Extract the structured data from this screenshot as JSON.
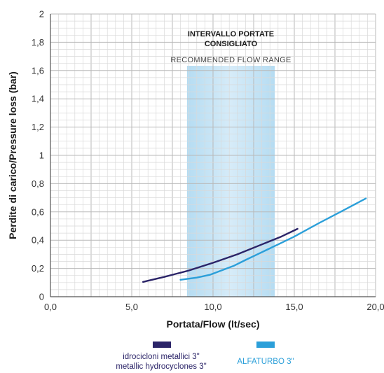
{
  "chart_data": {
    "type": "line",
    "xlabel": "Portata/Flow (lt/sec)",
    "ylabel": "Perdite di carico/Pressure loss (bar)",
    "xlim": [
      0,
      20
    ],
    "ylim": [
      0,
      2
    ],
    "x_ticks": [
      "0,0",
      "5,0",
      "10,0",
      "15,0",
      "20,0"
    ],
    "y_ticks": [
      "0",
      "0,2",
      "0,4",
      "0,6",
      "0,8",
      "1",
      "1,2",
      "1,4",
      "1,6",
      "1,8",
      "2"
    ],
    "grid": true,
    "highlight_band": {
      "x_range": [
        8.4,
        13.8
      ],
      "title_lines": [
        "INTERVALLO PORTATE",
        "CONSIGLIATO"
      ],
      "subtitle": "RECOMMENDED FLOW RANGE"
    },
    "series": [
      {
        "name": "idrocicloni metallici 3\" metallic hydrocyclones 3\"",
        "legend_lines": [
          "idrocicloni metallici 3\"",
          "metallic hydrocyclones 3\""
        ],
        "color": "#2b2468",
        "x": [
          5.7,
          7.0,
          8.5,
          10.0,
          11.5,
          13.0,
          14.2,
          15.2
        ],
        "y": [
          0.105,
          0.14,
          0.185,
          0.24,
          0.3,
          0.37,
          0.425,
          0.48
        ]
      },
      {
        "name": "ALFATURBO 3\"",
        "legend_lines": [
          "ALFATURBO 3\""
        ],
        "color": "#2b9fd9",
        "x": [
          8.0,
          9.0,
          9.8,
          10.5,
          11.3,
          12.0,
          13.0,
          14.0,
          15.0,
          16.5,
          18.0,
          19.4
        ],
        "y": [
          0.12,
          0.135,
          0.155,
          0.185,
          0.22,
          0.26,
          0.315,
          0.37,
          0.425,
          0.52,
          0.61,
          0.695
        ]
      }
    ]
  }
}
